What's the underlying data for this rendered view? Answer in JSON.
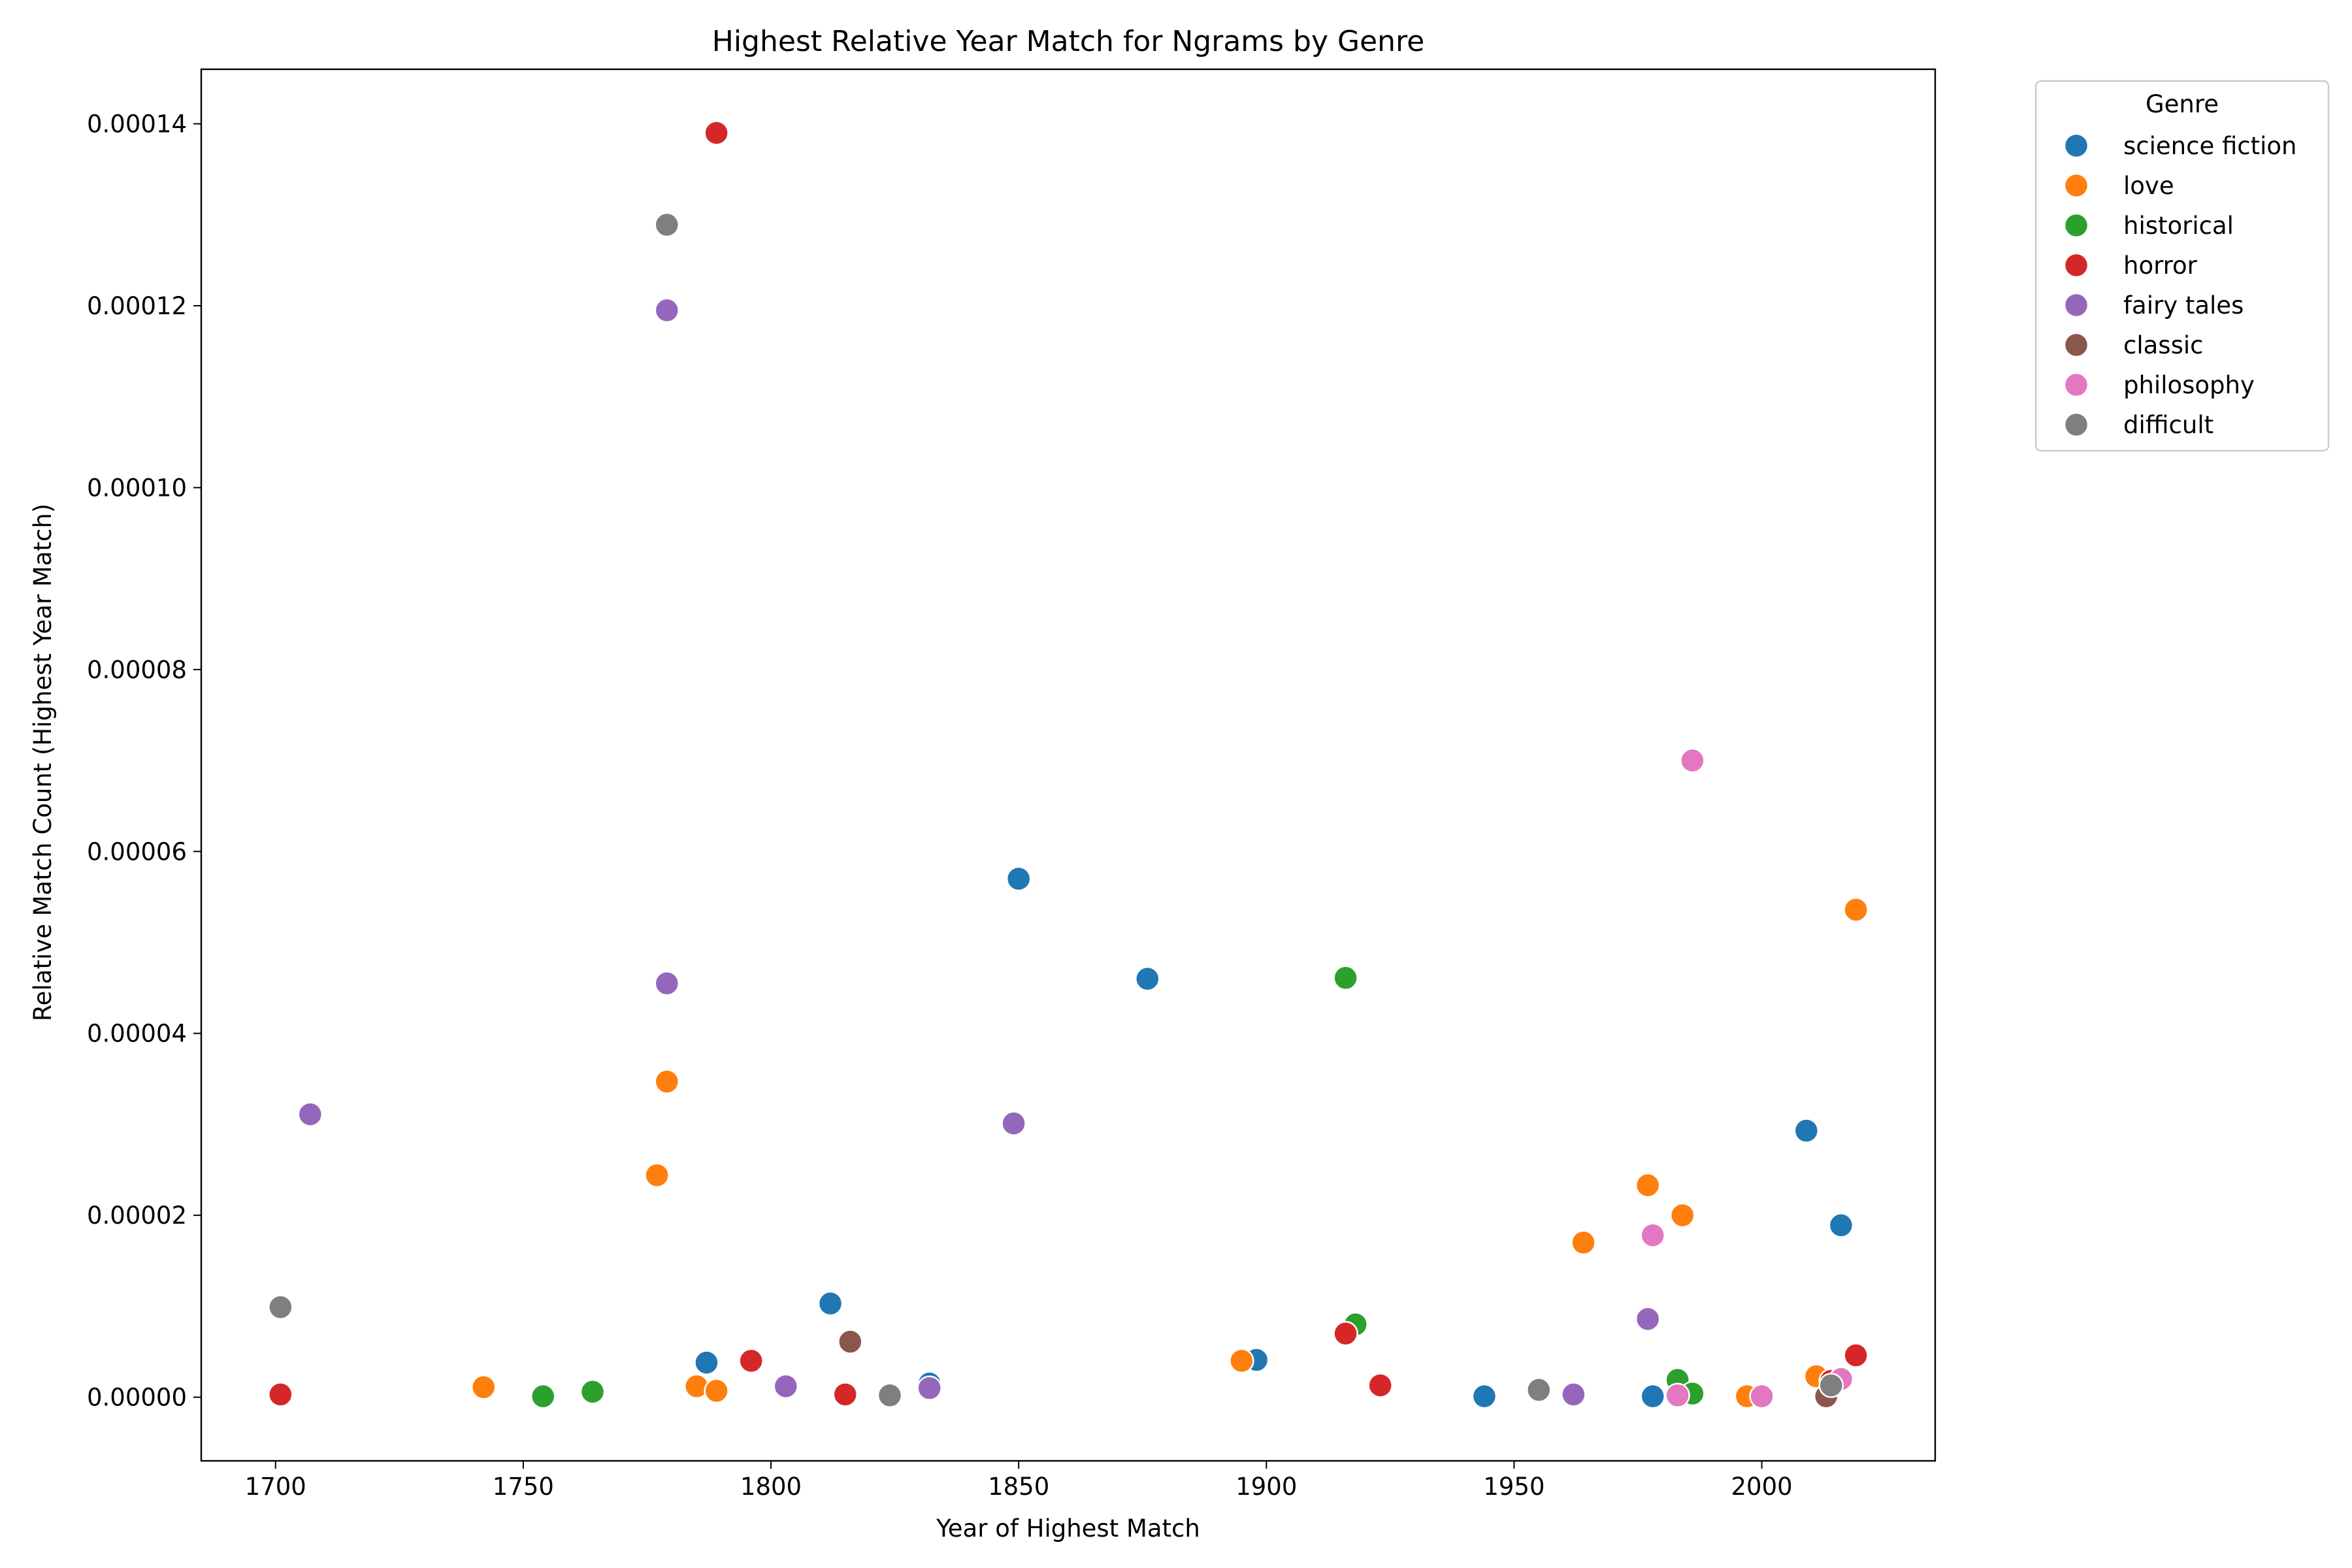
{
  "chart_data": {
    "type": "scatter",
    "title": "Highest Relative Year Match for Ngrams by Genre",
    "xlabel": "Year of Highest Match",
    "ylabel": "Relative Match Count (Highest Year Match)",
    "xlim": [
      1685,
      2035
    ],
    "ylim": [
      -7e-06,
      0.000146
    ],
    "xticks": [
      1700,
      1750,
      1800,
      1850,
      1900,
      1950,
      2000
    ],
    "xtick_labels": [
      "1700",
      "1750",
      "1800",
      "1850",
      "1900",
      "1950",
      "2000"
    ],
    "yticks": [
      0,
      2e-05,
      4e-05,
      6e-05,
      8e-05,
      0.0001,
      0.00012,
      0.00014
    ],
    "ytick_labels": [
      "0.00000",
      "0.00002",
      "0.00004",
      "0.00006",
      "0.00008",
      "0.00010",
      "0.00012",
      "0.00014"
    ],
    "grid": false,
    "legend": {
      "title": "Genre",
      "placement": "outside-top-right"
    },
    "series": [
      {
        "name": "science fiction",
        "color": "#1f77b4",
        "points": [
          [
            1850,
            5.7e-05
          ],
          [
            1876,
            4.6e-05
          ],
          [
            2009,
            2.93e-05
          ],
          [
            2016,
            1.89e-05
          ],
          [
            1812,
            1.03e-05
          ],
          [
            1787,
            3.8e-06
          ],
          [
            1898,
            4.1e-06
          ],
          [
            1832,
            1.5e-06
          ],
          [
            1944,
            1e-07
          ],
          [
            1978,
            1e-07
          ]
        ]
      },
      {
        "name": "love",
        "color": "#ff7f0e",
        "points": [
          [
            1779,
            3.47e-05
          ],
          [
            1777,
            2.44e-05
          ],
          [
            2019,
            5.36e-05
          ],
          [
            1977,
            2.33e-05
          ],
          [
            1984,
            2e-05
          ],
          [
            1964,
            1.7e-05
          ],
          [
            1895,
            4e-06
          ],
          [
            1742,
            1.1e-06
          ],
          [
            1785,
            1.2e-06
          ],
          [
            1789,
            7e-07
          ],
          [
            1997,
            1e-07
          ],
          [
            2011,
            2.3e-06
          ]
        ]
      },
      {
        "name": "historical",
        "color": "#2ca02c",
        "points": [
          [
            1916,
            4.61e-05
          ],
          [
            1918,
            8e-06
          ],
          [
            1754,
            1e-07
          ],
          [
            1764,
            6e-07
          ],
          [
            1983,
            1.9e-06
          ],
          [
            1986,
            4e-07
          ]
        ]
      },
      {
        "name": "horror",
        "color": "#d62728",
        "points": [
          [
            1789,
            0.000139
          ],
          [
            1796,
            4e-06
          ],
          [
            1916,
            7e-06
          ],
          [
            1923,
            1.3e-06
          ],
          [
            2019,
            4.6e-06
          ],
          [
            1701,
            3e-07
          ],
          [
            1815,
            3e-07
          ],
          [
            2014,
            1.8e-06
          ]
        ]
      },
      {
        "name": "fairy tales",
        "color": "#9467bd",
        "points": [
          [
            1779,
            0.0001195
          ],
          [
            1779,
            4.55e-05
          ],
          [
            1707,
            3.11e-05
          ],
          [
            1849,
            3.01e-05
          ],
          [
            1977,
            8.6e-06
          ],
          [
            1803,
            1.2e-06
          ],
          [
            1832,
            1e-06
          ],
          [
            1962,
            3e-07
          ]
        ]
      },
      {
        "name": "classic",
        "color": "#8c564b",
        "points": [
          [
            1816,
            6.1e-06
          ],
          [
            2013,
            1e-07
          ]
        ]
      },
      {
        "name": "philosophy",
        "color": "#e377c2",
        "points": [
          [
            1986,
            7e-05
          ],
          [
            1978,
            1.78e-05
          ],
          [
            2016,
            2e-06
          ],
          [
            1983,
            2e-07
          ],
          [
            2000,
            1e-07
          ]
        ]
      },
      {
        "name": "difficult",
        "color": "#7f7f7f",
        "points": [
          [
            1779,
            0.0001289
          ],
          [
            1701,
            9.9e-06
          ],
          [
            1824,
            2e-07
          ],
          [
            1955,
            8e-07
          ],
          [
            2014,
            1.3e-06
          ]
        ]
      }
    ]
  }
}
